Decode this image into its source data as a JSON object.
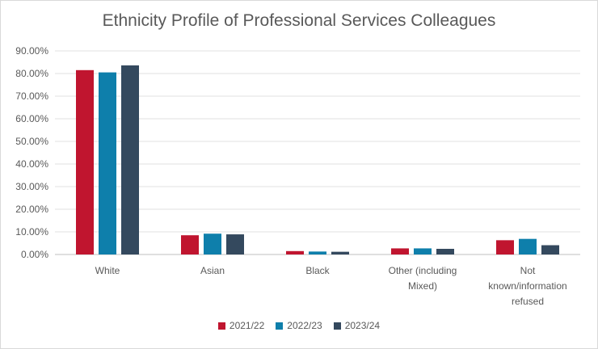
{
  "chart_data": {
    "type": "bar",
    "title": "Ethnicity Profile of Professional Services Colleagues",
    "xlabel": "",
    "ylabel": "",
    "ylim": [
      0,
      0.9
    ],
    "y_ticks": [
      "0.00%",
      "10.00%",
      "20.00%",
      "30.00%",
      "40.00%",
      "50.00%",
      "60.00%",
      "70.00%",
      "80.00%",
      "90.00%"
    ],
    "categories": [
      [
        "White"
      ],
      [
        "Asian"
      ],
      [
        "Black"
      ],
      [
        "Other (including",
        "Mixed)"
      ],
      [
        "Not",
        "known/information",
        "refused"
      ]
    ],
    "series": [
      {
        "name": "2021/22",
        "color": "#c0152f",
        "values": [
          0.815,
          0.085,
          0.015,
          0.027,
          0.063
        ]
      },
      {
        "name": "2022/23",
        "color": "#0e7fab",
        "values": [
          0.805,
          0.092,
          0.013,
          0.027,
          0.069
        ]
      },
      {
        "name": "2023/24",
        "color": "#34495e",
        "values": [
          0.836,
          0.089,
          0.012,
          0.025,
          0.041
        ]
      }
    ],
    "grid": true,
    "legend_position": "bottom"
  }
}
